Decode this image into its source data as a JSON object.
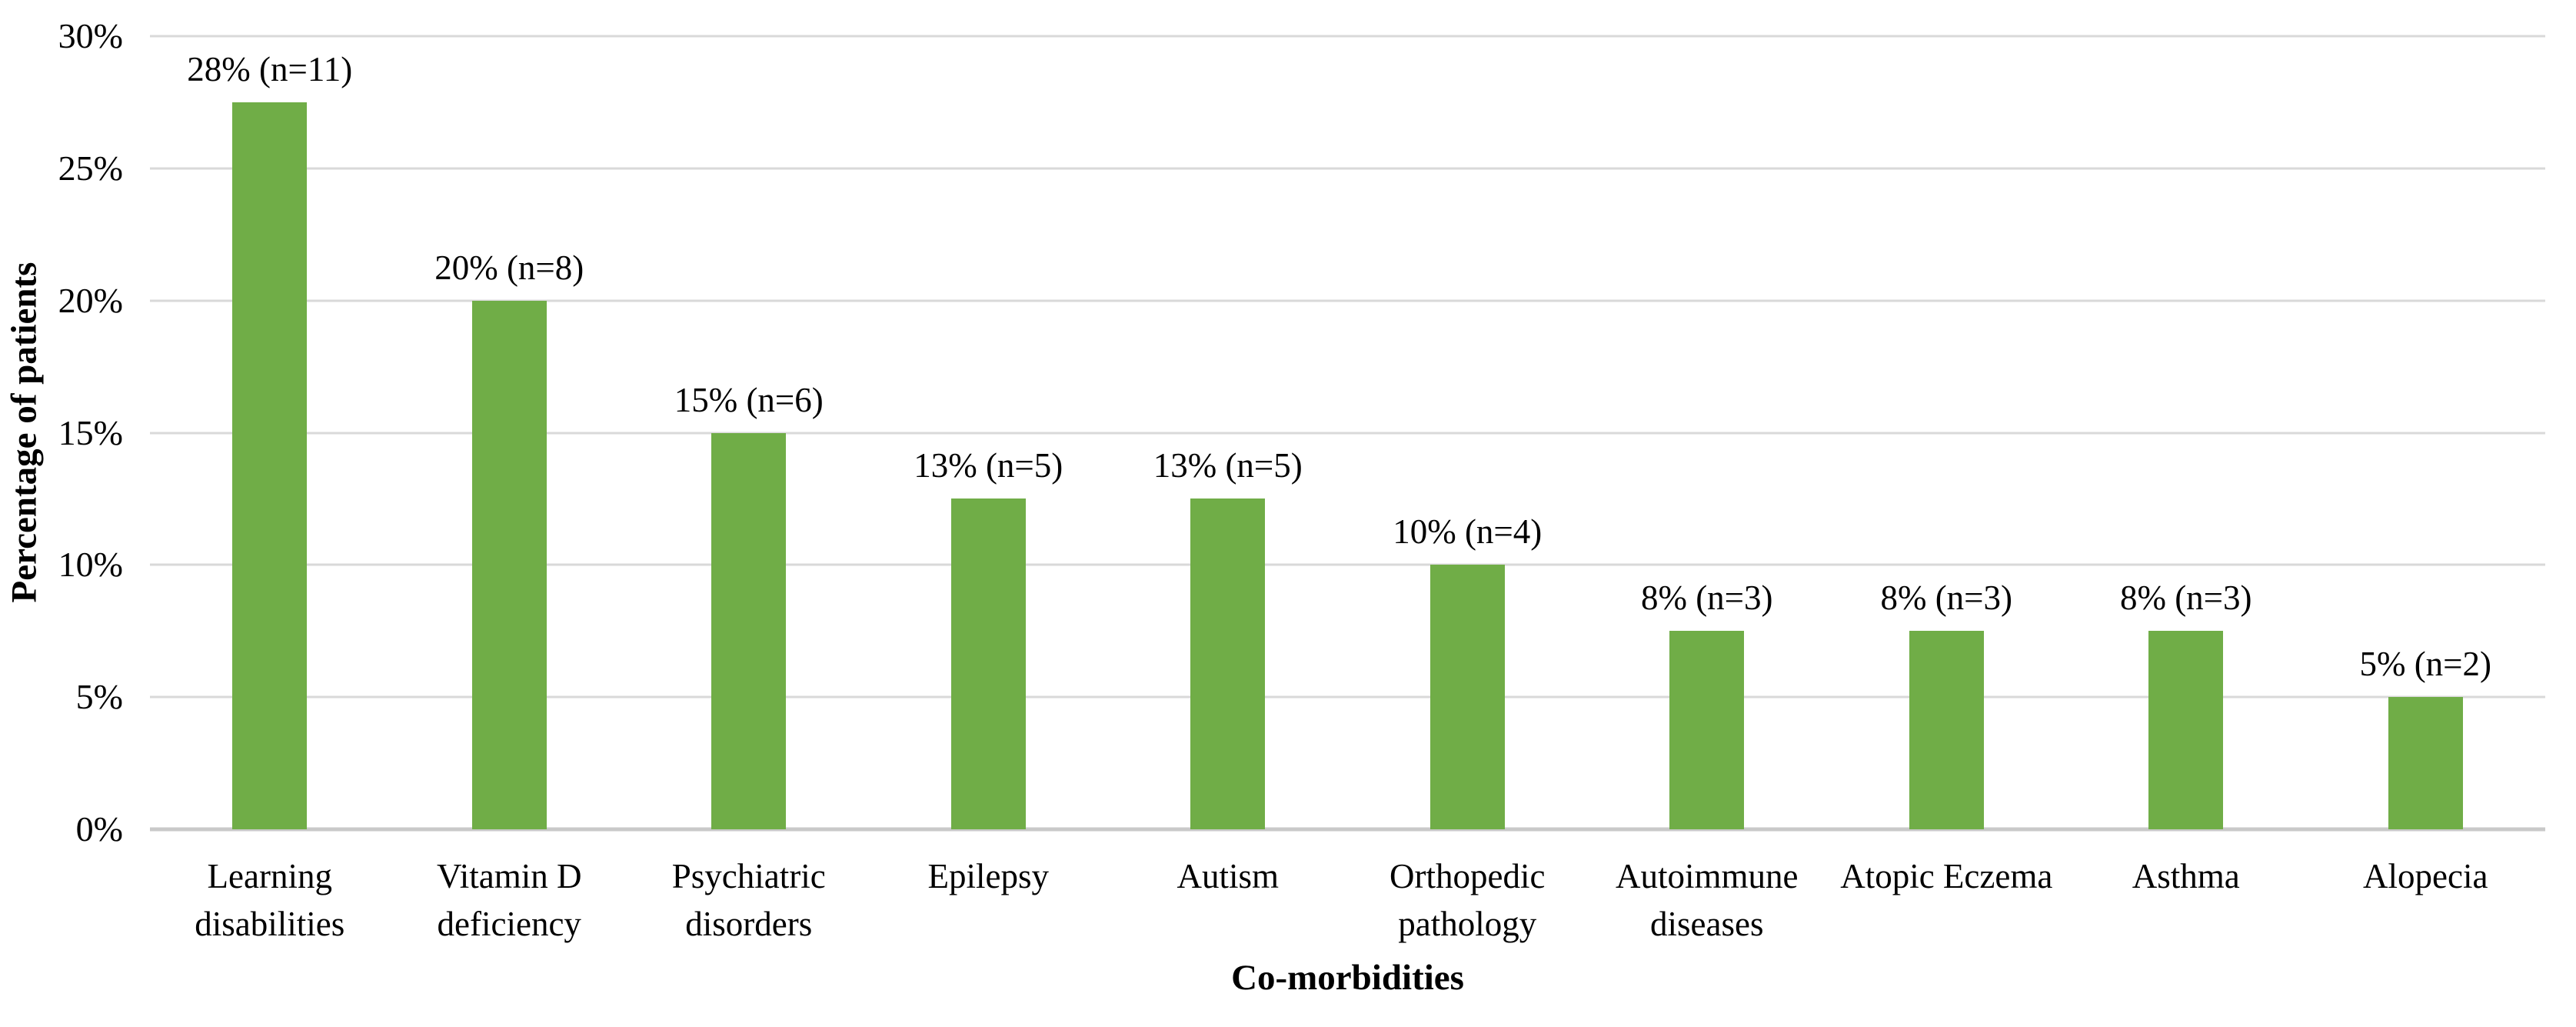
{
  "chart_data": {
    "type": "bar",
    "title": "",
    "xlabel": "Co-morbidities",
    "ylabel": "Percentage of patients",
    "categories": [
      "Learning\ndisabilities",
      "Vitamin D\ndeficiency",
      "Psychiatric\ndisorders",
      "Epilepsy",
      "Autism",
      "Orthopedic\npathology",
      "Autoimmune\ndiseases",
      "Atopic Eczema",
      "Asthma",
      "Alopecia"
    ],
    "values": [
      28,
      20,
      15,
      13,
      13,
      10,
      8,
      8,
      8,
      5
    ],
    "n_values": [
      11,
      8,
      6,
      5,
      5,
      4,
      3,
      3,
      3,
      2
    ],
    "bar_labels": [
      "28% (n=11)",
      "20% (n=8)",
      "15% (n=6)",
      "13% (n=5)",
      "13% (n=5)",
      "10% (n=4)",
      "8% (n=3)",
      "8% (n=3)",
      "8% (n=3)",
      "5% (n=2)"
    ],
    "bar_heights_pct": [
      27.5,
      20,
      15,
      12.5,
      12.5,
      10,
      7.5,
      7.5,
      7.5,
      5
    ],
    "ylim": [
      0,
      30
    ],
    "ytick_step": 5,
    "ytick_labels": [
      "0%",
      "5%",
      "10%",
      "15%",
      "20%",
      "25%",
      "30%"
    ],
    "grid": "horizontal-gridlines-on",
    "legend": "none",
    "colors": {
      "bar": "#70AD47",
      "gridline": "#D9D9D9",
      "axis_line": "#C9C9C9",
      "text": "#000000",
      "background": "#FFFFFF"
    }
  }
}
